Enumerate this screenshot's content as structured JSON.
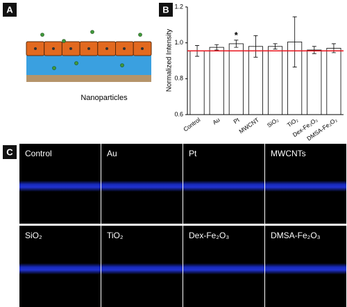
{
  "panel_a": {
    "label": "A",
    "caption": "Nanoparticles"
  },
  "chart_data": {
    "type": "bar",
    "panel_label": "B",
    "y_label": "Normalized Intensity",
    "categories": [
      "Control",
      "Au",
      "Pt",
      "MWCNT",
      "SiO₂",
      "TiO₂",
      "Dex-Fe₂O₃",
      "DMSA-Fe₂O₃"
    ],
    "values": [
      0.955,
      0.975,
      0.995,
      0.98,
      0.98,
      1.005,
      0.96,
      0.97
    ],
    "errors": [
      0.03,
      0.015,
      0.02,
      0.06,
      0.015,
      0.14,
      0.02,
      0.025
    ],
    "color": "#ffffff",
    "ylim": [
      0.6,
      1.2
    ],
    "yticks": [
      0.6,
      0.8,
      {
        "value": 1,
        "label": "1.0"
      },
      1.2
    ],
    "reference_line": 0.955,
    "reference_color": "#e8141c",
    "annotations": [
      {
        "category": "Pt",
        "text": "*"
      }
    ]
  },
  "panel_c": {
    "label": "C",
    "images": [
      "Control",
      "Au",
      "Pt",
      "MWCNTs",
      "SiO₂",
      "TiO₂",
      "Dex-Fe₂O₃",
      "DMSA-Fe₂O₃"
    ]
  }
}
